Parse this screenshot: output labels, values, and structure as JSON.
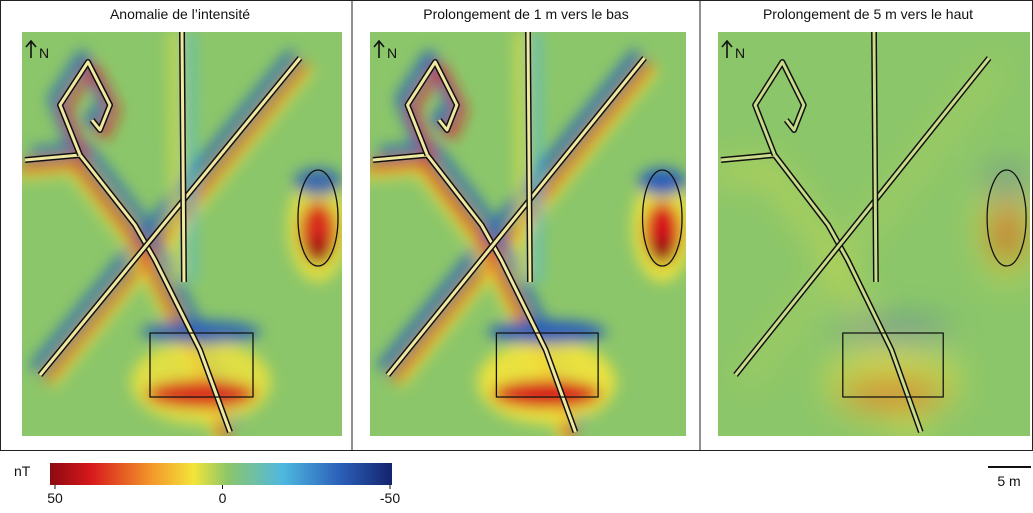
{
  "panels": [
    {
      "title": "Anomalie de l’intensité",
      "north": "N"
    },
    {
      "title": "Prolongement de 1 m vers le bas",
      "north": "N"
    },
    {
      "title": "Prolongement de 5 m vers le haut",
      "north": "N"
    }
  ],
  "colorbar": {
    "unit": "nT",
    "ticks": [
      50,
      0,
      -50
    ]
  },
  "scale_bar": "5 m"
}
